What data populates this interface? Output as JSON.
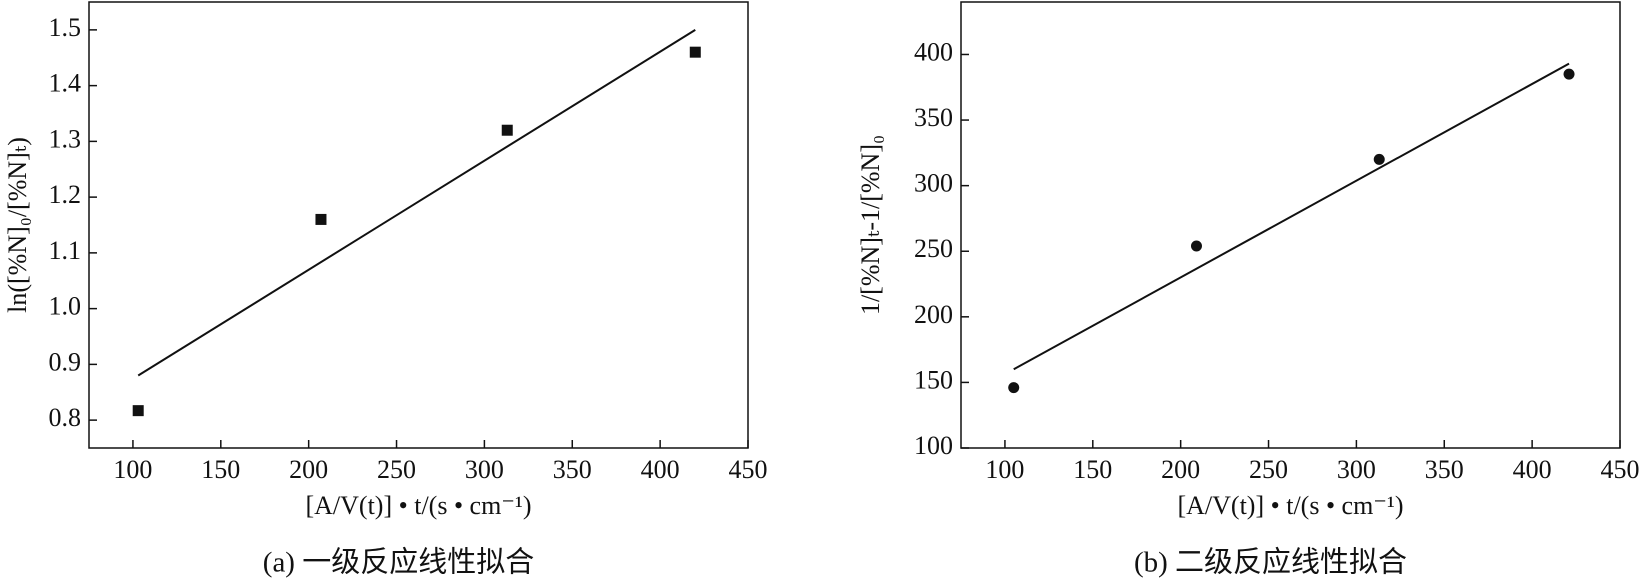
{
  "chart_data": [
    {
      "type": "scatter",
      "caption": "(a) 一级反应线性拟合",
      "xlabel": "[A/V(t)] • t/(s • cm⁻¹)",
      "ylabel": "ln([%N]₀/[%N]ₜ)",
      "x": [
        103,
        207,
        313,
        420
      ],
      "values": [
        0.817,
        1.16,
        1.32,
        1.46
      ],
      "marker": "square",
      "color": "#111111",
      "fit": {
        "x": [
          103,
          420
        ],
        "values": [
          0.88,
          1.5
        ]
      },
      "xlim": [
        75,
        450
      ],
      "xticks": [
        100,
        150,
        200,
        250,
        300,
        350,
        400,
        450
      ],
      "ylim": [
        0.75,
        1.55
      ],
      "yticks": [
        0.8,
        0.9,
        {
          "value": 1,
          "label": "1.0"
        },
        1.1,
        1.2,
        1.3,
        1.4,
        1.5
      ]
    },
    {
      "type": "scatter",
      "caption": "(b) 二级反应线性拟合",
      "xlabel": "[A/V(t)] • t/(s • cm⁻¹)",
      "ylabel": "1/[%N]ₜ-1/[%N]₀",
      "x": [
        105,
        209,
        313,
        421
      ],
      "values": [
        146,
        254,
        320,
        385
      ],
      "marker": "circle",
      "color": "#111111",
      "fit": {
        "x": [
          105,
          421
        ],
        "values": [
          160,
          393
        ]
      },
      "xlim": [
        75,
        450
      ],
      "xticks": [
        100,
        150,
        200,
        250,
        300,
        350,
        400,
        450
      ],
      "ylim": [
        100,
        440
      ],
      "yticks": [
        100,
        150,
        200,
        250,
        300,
        350,
        400
      ]
    }
  ]
}
